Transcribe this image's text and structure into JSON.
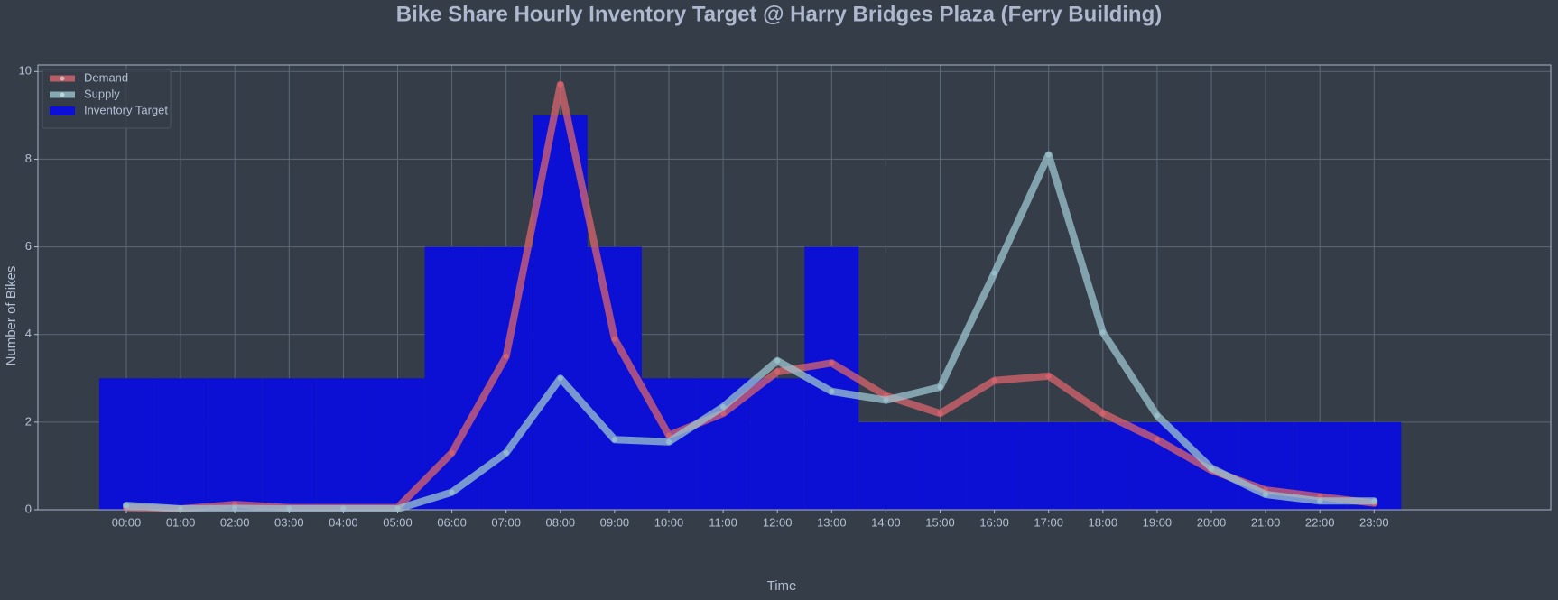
{
  "chart_data": {
    "type": "line",
    "title": "Bike Share Hourly Inventory Target @ Harry Bridges Plaza (Ferry Building)",
    "xlabel": "Time",
    "ylabel": "Number of Bikes",
    "categories": [
      "00:00",
      "01:00",
      "02:00",
      "03:00",
      "04:00",
      "05:00",
      "06:00",
      "07:00",
      "08:00",
      "09:00",
      "10:00",
      "11:00",
      "12:00",
      "13:00",
      "14:00",
      "15:00",
      "16:00",
      "17:00",
      "18:00",
      "19:00",
      "20:00",
      "21:00",
      "22:00",
      "23:00"
    ],
    "series": [
      {
        "name": "Demand",
        "type": "line",
        "color": "#d9646e",
        "values": [
          0.05,
          0.02,
          0.12,
          0.05,
          0.05,
          0.05,
          1.3,
          3.5,
          9.7,
          3.9,
          1.7,
          2.2,
          3.15,
          3.35,
          2.6,
          2.2,
          2.95,
          3.05,
          2.2,
          1.6,
          0.9,
          0.45,
          0.3,
          0.15
        ]
      },
      {
        "name": "Supply",
        "type": "line",
        "color": "#9cc4cf",
        "values": [
          0.1,
          0.02,
          0.03,
          0.02,
          0.02,
          0.02,
          0.4,
          1.3,
          3.0,
          1.6,
          1.55,
          2.35,
          3.4,
          2.7,
          2.5,
          2.8,
          5.4,
          8.1,
          4.05,
          2.15,
          0.95,
          0.35,
          0.2,
          0.2
        ]
      },
      {
        "name": "Inventory Target",
        "type": "bar",
        "color": "#0c10d4",
        "values": [
          3,
          3,
          3,
          3,
          3,
          3,
          6,
          6,
          9,
          6,
          3,
          3,
          3,
          6,
          2,
          2,
          2,
          2,
          2,
          2,
          2,
          2,
          2,
          2
        ]
      }
    ],
    "ylim": [
      0,
      10.15
    ],
    "yticks": [
      0,
      2,
      4,
      6,
      8,
      10
    ],
    "grid": true,
    "legend": "upper-left"
  }
}
